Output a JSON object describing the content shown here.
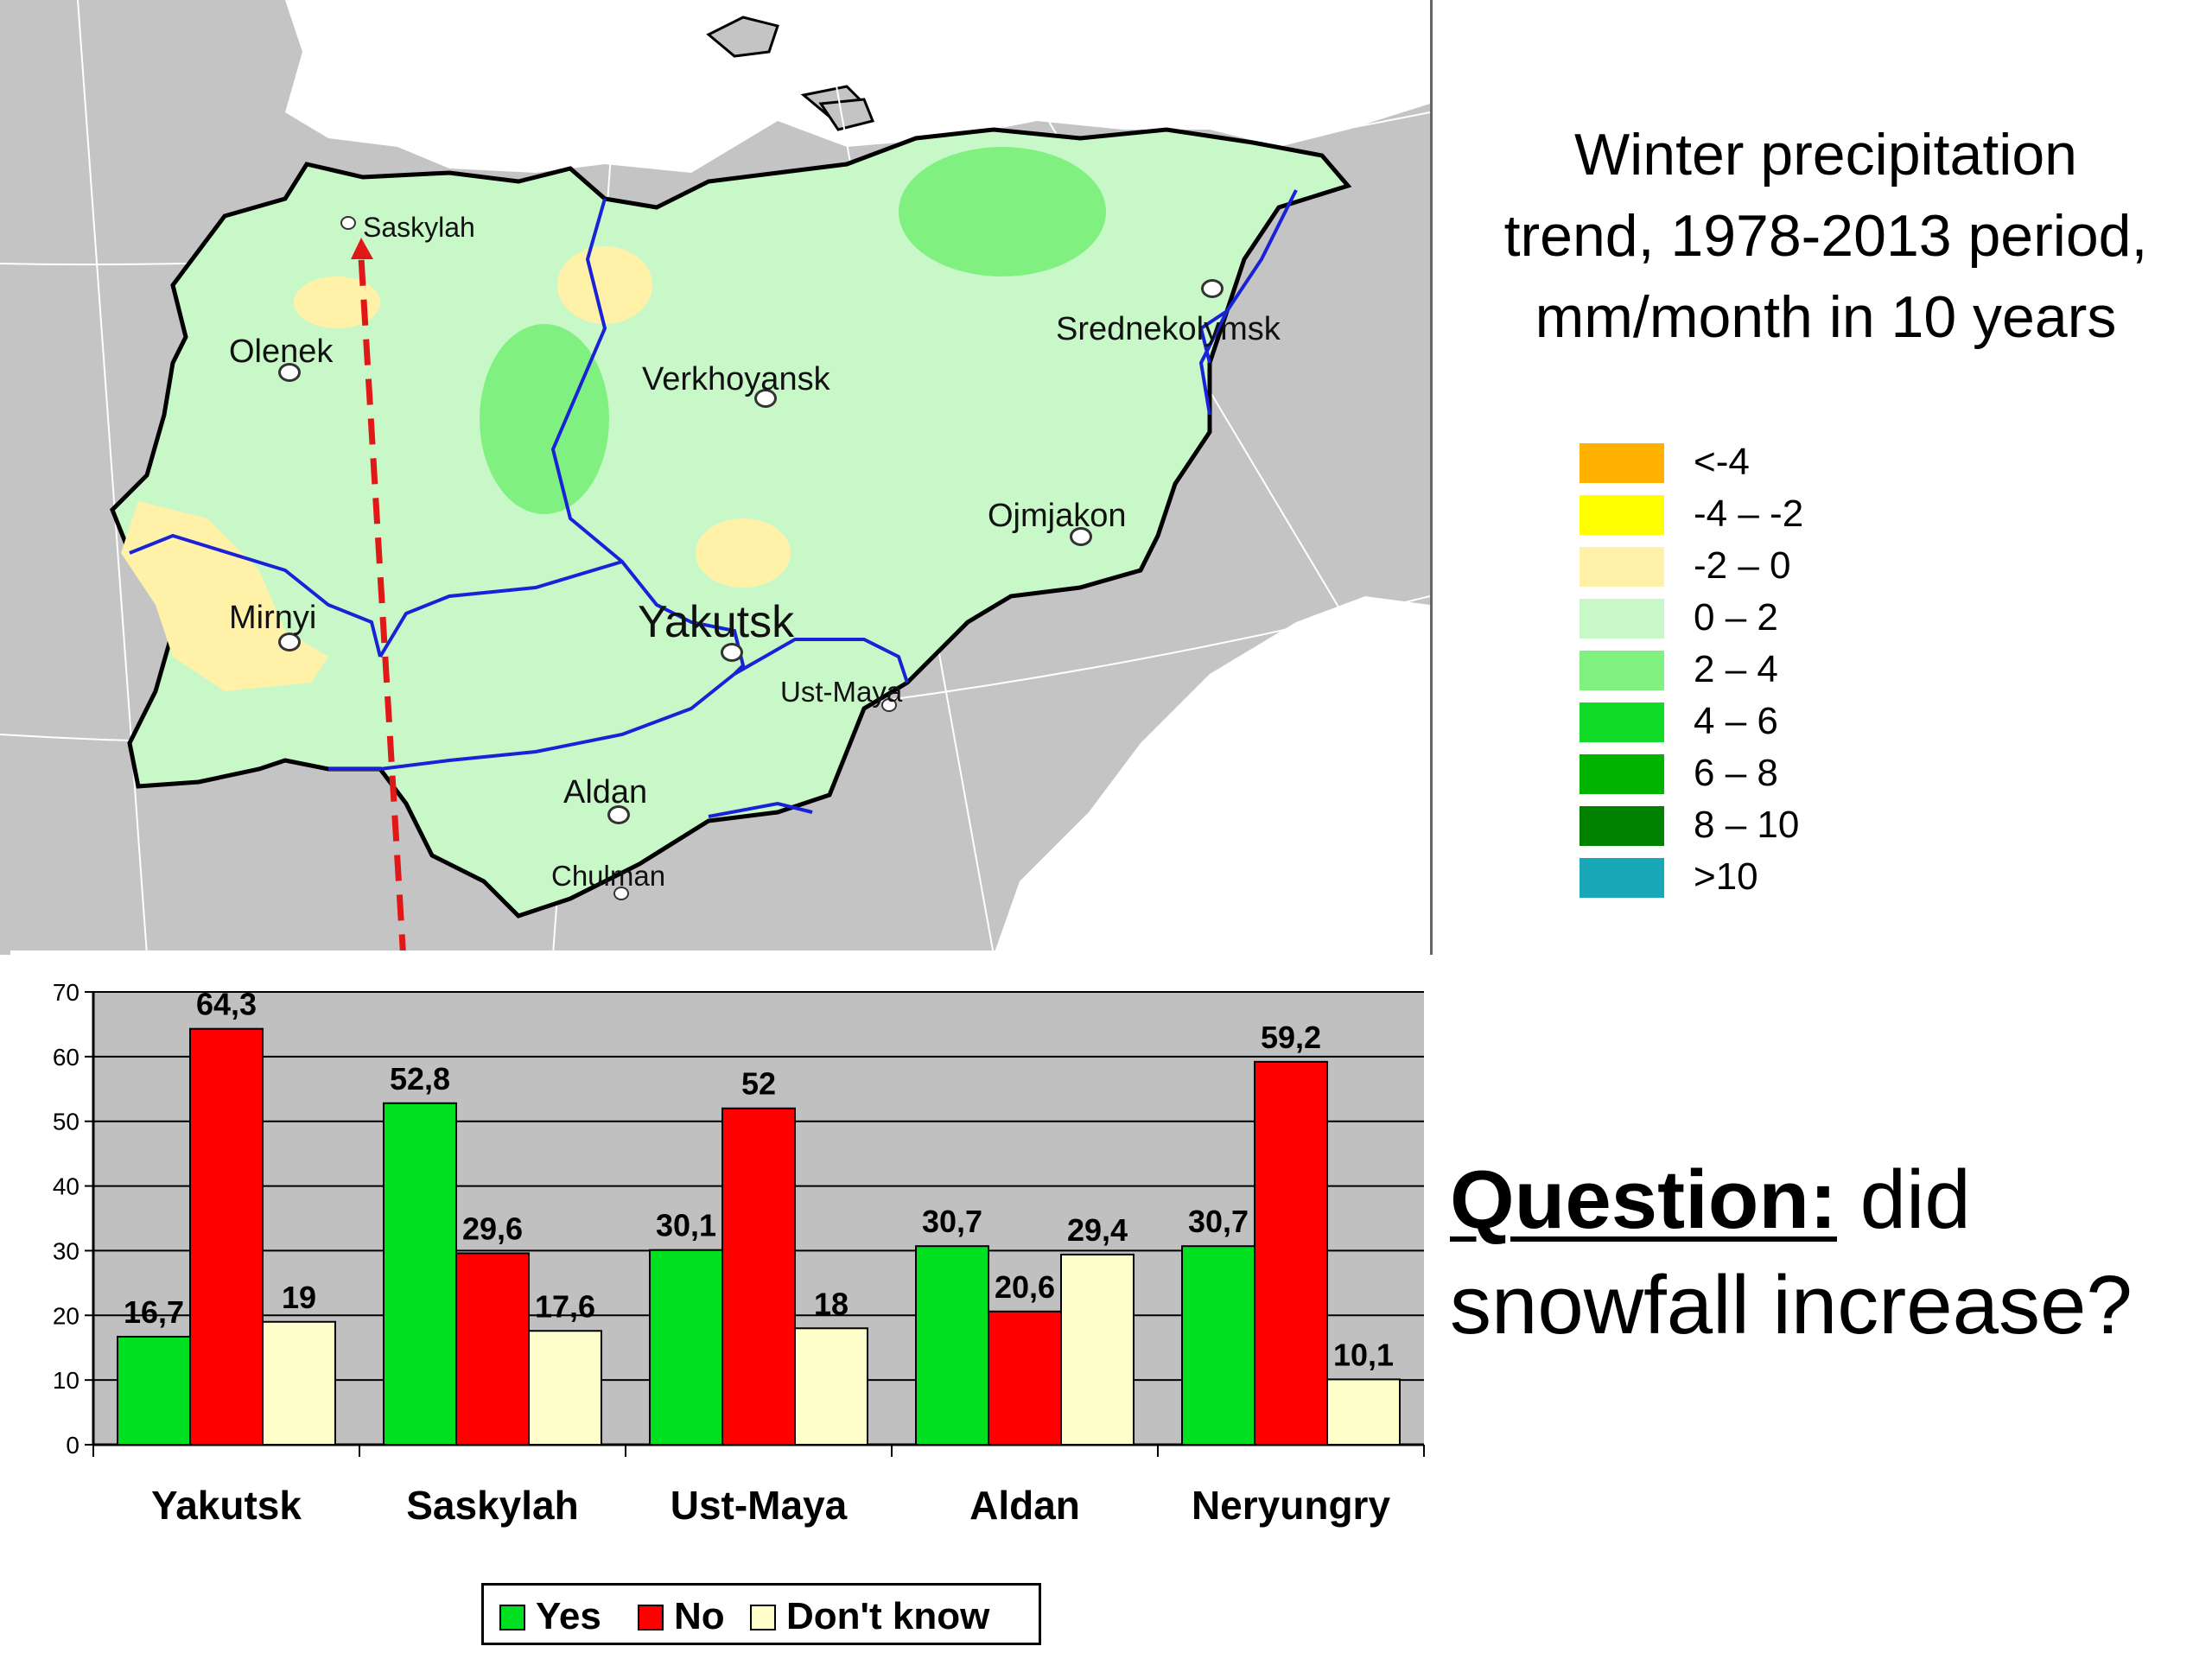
{
  "map": {
    "title": "Winter precipitation\ntrend, 1978-2013 period,\nmm/month in 10 years",
    "legend": [
      {
        "label": "<-4",
        "color": "#ffb000"
      },
      {
        "label": "-4 – -2",
        "color": "#ffff00"
      },
      {
        "label": "-2 – 0",
        "color": "#fff2a8"
      },
      {
        "label": "0 – 2",
        "color": "#c8f8c8"
      },
      {
        "label": "2 – 4",
        "color": "#80f080"
      },
      {
        "label": "4 – 6",
        "color": "#10dc28"
      },
      {
        "label": "6 – 8",
        "color": "#00b400"
      },
      {
        "label": "8 – 10",
        "color": "#008200"
      },
      {
        "label": ">10",
        "color": "#18a8b8"
      }
    ],
    "places": [
      {
        "name": "Saskylah"
      },
      {
        "name": "Olenek"
      },
      {
        "name": "Verkhoyansk"
      },
      {
        "name": "Srednekolymsk"
      },
      {
        "name": "Ojmjakon"
      },
      {
        "name": "Mirnyi"
      },
      {
        "name": "Yakutsk"
      },
      {
        "name": "Ust-Maya"
      },
      {
        "name": "Aldan"
      },
      {
        "name": "Chulman"
      }
    ],
    "colors": {
      "background": "#c4c4c4",
      "region": "#c8f8c8",
      "rivers": "#1a22d8",
      "border": "#000000",
      "arrow": "#e01818"
    }
  },
  "question": {
    "bold": "Question:",
    "rest": " did snowfall increase?"
  },
  "chart_data": {
    "type": "bar",
    "categories": [
      "Yakutsk",
      "Saskylah",
      "Ust-Maya",
      "Aldan",
      "Neryungry"
    ],
    "series": [
      {
        "name": "Yes",
        "color": "#00e020",
        "values": [
          16.7,
          52.8,
          30.1,
          30.7,
          30.7
        ],
        "labels": [
          "16,7",
          "52,8",
          "30,1",
          "30,7",
          "30,7"
        ]
      },
      {
        "name": "No",
        "color": "#ff0000",
        "values": [
          64.3,
          29.6,
          52,
          20.6,
          59.2
        ],
        "labels": [
          "64,3",
          "29,6",
          "52",
          "20,6",
          "59,2"
        ]
      },
      {
        "name": "Don't know",
        "color": "#ffffcc",
        "values": [
          19,
          17.6,
          18,
          29.4,
          10.1
        ],
        "labels": [
          "19",
          "17,6",
          "18",
          "29,4",
          "10,1"
        ]
      }
    ],
    "ylim": [
      0,
      70
    ],
    "yticks": [
      "0",
      "10",
      "20",
      "30",
      "40",
      "50",
      "60",
      "70"
    ],
    "grid": true,
    "plot_background": "#c0c0c0",
    "legend_position": "bottom"
  }
}
